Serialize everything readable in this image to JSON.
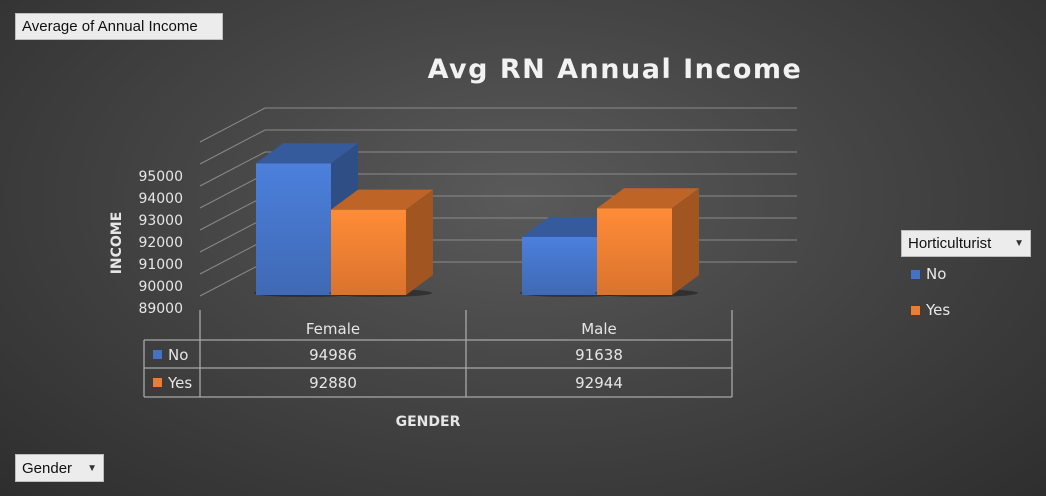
{
  "value_field": {
    "label": "Average of Annual Income"
  },
  "row_field": {
    "label": "Gender"
  },
  "legend_field": {
    "label": "Horticulturist"
  },
  "chart_data": {
    "type": "bar",
    "title": "Avg RN Annual Income",
    "xlabel": "GENDER",
    "ylabel": "INCOME",
    "categories": [
      "Female",
      "Male"
    ],
    "series": [
      {
        "name": "No",
        "values": [
          94986,
          91638
        ],
        "color": "#4472c4"
      },
      {
        "name": "Yes",
        "values": [
          92880,
          92944
        ],
        "color": "#ed7d31"
      }
    ],
    "ylim": [
      89000,
      95000
    ],
    "yticks": [
      "89000",
      "90000",
      "91000",
      "92000",
      "93000",
      "94000",
      "95000"
    ],
    "table_values": [
      [
        "94986",
        "91638"
      ],
      [
        "92880",
        "92944"
      ]
    ],
    "legend_position": "right",
    "grid": true,
    "data_table": true
  }
}
